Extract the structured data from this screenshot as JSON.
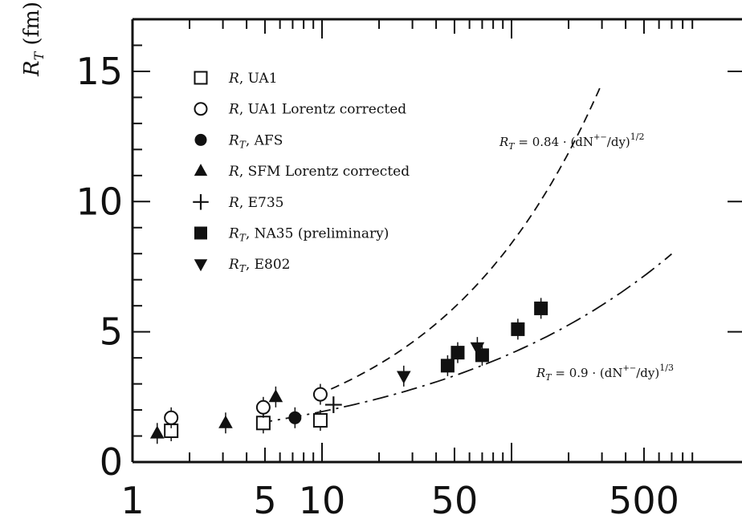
{
  "chart_data": {
    "type": "scatter",
    "title": "",
    "xlabel": "",
    "ylabel_main": "R",
    "ylabel_sub": "T",
    "ylabel_unit": "(fm)",
    "xscale": "log",
    "xlim": [
      1,
      1000
    ],
    "ylim": [
      0,
      17
    ],
    "xticks": [
      {
        "value": 1,
        "label": "1"
      },
      {
        "value": 5,
        "label": "5"
      },
      {
        "value": 10,
        "label": "10"
      },
      {
        "value": 50,
        "label": "50"
      },
      {
        "value": 500,
        "label": "500"
      }
    ],
    "yticks": [
      {
        "value": 0,
        "label": "0"
      },
      {
        "value": 5,
        "label": "5"
      },
      {
        "value": 10,
        "label": "10"
      },
      {
        "value": 15,
        "label": "15"
      }
    ],
    "legend_position": "top-left",
    "series": [
      {
        "main": "R",
        "sub": "",
        "label": ", UA1",
        "marker": "square-open",
        "points": [
          {
            "x": 1.6,
            "y": 1.2
          },
          {
            "x": 4.9,
            "y": 1.5
          },
          {
            "x": 9.8,
            "y": 1.6
          }
        ]
      },
      {
        "main": "R",
        "sub": "",
        "label": ", UA1 Lorentz corrected",
        "marker": "circle-open",
        "points": [
          {
            "x": 1.6,
            "y": 1.7
          },
          {
            "x": 4.9,
            "y": 2.1
          },
          {
            "x": 9.8,
            "y": 2.6
          }
        ]
      },
      {
        "main": "R",
        "sub": "T",
        "label": ", AFS",
        "marker": "circle-filled",
        "points": [
          {
            "x": 7.2,
            "y": 1.7
          }
        ]
      },
      {
        "main": "R",
        "sub": "",
        "label": ", SFM Lorentz corrected",
        "marker": "triangle-up",
        "points": [
          {
            "x": 1.35,
            "y": 1.1
          },
          {
            "x": 3.1,
            "y": 1.5
          },
          {
            "x": 5.7,
            "y": 2.5
          }
        ]
      },
      {
        "main": "R",
        "sub": "",
        "label": ", E735",
        "marker": "plus",
        "points": [
          {
            "x": 11.5,
            "y": 2.2
          }
        ]
      },
      {
        "main": "R",
        "sub": "T",
        "label": ", NA35 (preliminary)",
        "marker": "square-filled",
        "points": [
          {
            "x": 46,
            "y": 3.7
          },
          {
            "x": 52,
            "y": 4.2
          },
          {
            "x": 70,
            "y": 4.1
          },
          {
            "x": 108,
            "y": 5.1
          },
          {
            "x": 143,
            "y": 5.9
          }
        ]
      },
      {
        "main": "R",
        "sub": "T",
        "label": ", E802",
        "marker": "triangle-down",
        "points": [
          {
            "x": 27,
            "y": 3.3
          },
          {
            "x": 66,
            "y": 4.4
          }
        ]
      }
    ],
    "curves": [
      {
        "style": "dashed",
        "formula": "0.84*x^(1/2)",
        "coef": 0.84,
        "power": 0.5,
        "xrange": [
          9.5,
          300
        ],
        "anno_main": "R",
        "anno_sub": "T",
        "anno_rest": " = 0.84 · (dN",
        "anno_sup1": "+−",
        "anno_rest2": "/dy)",
        "anno_sup2": "1/2"
      },
      {
        "style": "dash-dot",
        "formula": "0.9*x^(1/3)",
        "coef": 0.9,
        "power": 0.3333,
        "xrange": [
          4.5,
          700
        ],
        "anno_main": "R",
        "anno_sub": "T",
        "anno_rest": " = 0.9 · (dN",
        "anno_sup1": "+−",
        "anno_rest2": "/dy)",
        "anno_sup2": "1/3"
      }
    ]
  }
}
